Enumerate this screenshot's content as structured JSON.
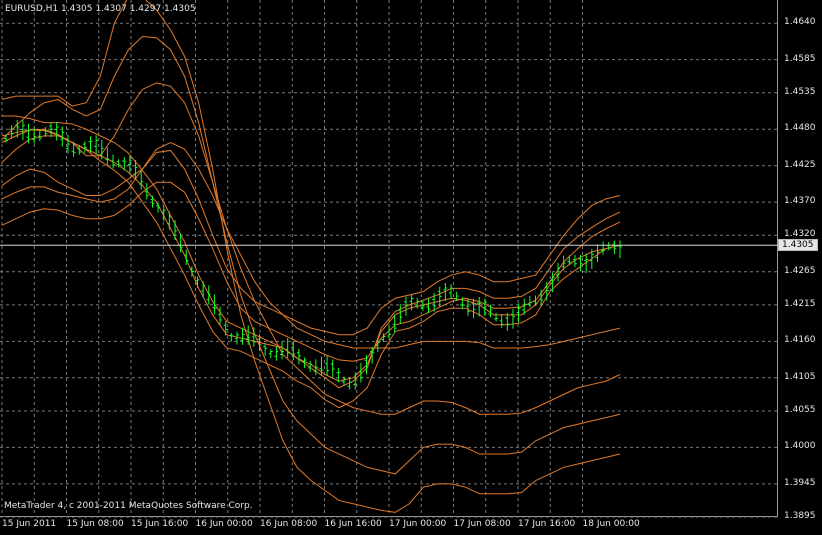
{
  "window": {
    "title": "EURUSD,H1",
    "ohlc": "1.4305 1.4307 1.4297 1.4305"
  },
  "footer": {
    "copyright": "MetaTrader 4, c 2001-2011 MetaQuotes Software Corp."
  },
  "colors": {
    "background": "#000000",
    "grid": "#7a7a7a",
    "axis_text": "#e6e6e6",
    "band": "#e07a2a",
    "price_line": "#d6d6d6",
    "candles": "#18ff2b"
  },
  "price_axis": {
    "labels": [
      "1.4640",
      "1.4585",
      "1.4535",
      "1.4480",
      "1.4425",
      "1.4370",
      "1.4320",
      "1.4265",
      "1.4215",
      "1.4160",
      "1.4105",
      "1.4055",
      "1.4000",
      "1.3945",
      "1.3895"
    ]
  },
  "time_axis": {
    "labels": [
      "15 Jun 2011",
      "15 Jun 08:00",
      "15 Jun 16:00",
      "16 Jun 00:00",
      "16 Jun 08:00",
      "16 Jun 16:00",
      "17 Jun 00:00",
      "17 Jun 08:00",
      "17 Jun 16:00",
      "18 Jun 00:00"
    ]
  },
  "current_price": "1.4305",
  "chart_data": {
    "type": "line",
    "title": "EURUSD,H1",
    "series": [
      {
        "values": [
          1.447,
          1.4475,
          1.4479,
          1.4478,
          1.4471,
          1.446,
          1.4449,
          1.4432,
          1.4418,
          1.44,
          1.437,
          1.434,
          1.43,
          1.426,
          1.4215,
          1.4175,
          1.415,
          1.4145,
          1.4135,
          1.4125,
          1.4115,
          1.41,
          1.409,
          1.4072,
          1.406,
          1.407,
          1.409,
          1.414,
          1.4175,
          1.418,
          1.419,
          1.4205,
          1.421,
          1.421,
          1.42,
          1.4185,
          1.4185,
          1.4188,
          1.42,
          1.4235,
          1.4255,
          1.427,
          1.4285,
          1.43,
          1.4305
        ]
      },
      {
        "values": [
          1.45,
          1.45,
          1.4496,
          1.449,
          1.449,
          1.4488,
          1.448,
          1.447,
          1.446,
          1.4444,
          1.4418,
          1.439,
          1.435,
          1.431,
          1.426,
          1.422,
          1.419,
          1.418,
          1.417,
          1.416,
          1.415,
          1.4135,
          1.412,
          1.4105,
          1.409,
          1.41,
          1.412,
          1.418,
          1.4205,
          1.4215,
          1.4222,
          1.423,
          1.424,
          1.424,
          1.4235,
          1.4225,
          1.4225,
          1.4228,
          1.424,
          1.427,
          1.43,
          1.4318,
          1.4332,
          1.4345,
          1.4355
        ]
      },
      {
        "values": [
          1.4395,
          1.441,
          1.442,
          1.4415,
          1.44,
          1.439,
          1.438,
          1.438,
          1.439,
          1.4405,
          1.442,
          1.445,
          1.446,
          1.445,
          1.442,
          1.438,
          1.433,
          1.429,
          1.425,
          1.422,
          1.42,
          1.418,
          1.417,
          1.416,
          1.4155,
          1.415,
          1.415,
          1.415,
          1.415,
          1.4155,
          1.416,
          1.416,
          1.416,
          1.416,
          1.4158,
          1.415,
          1.415,
          1.415,
          1.4152,
          1.4155,
          1.416,
          1.4165,
          1.417,
          1.4175,
          1.418
        ]
      },
      {
        "values": [
          1.443,
          1.445,
          1.4465,
          1.447,
          1.447,
          1.446,
          1.444,
          1.444,
          1.447,
          1.451,
          1.454,
          1.455,
          1.4545,
          1.452,
          1.447,
          1.44,
          1.433,
          1.427,
          1.422,
          1.418,
          1.414,
          1.412,
          1.41,
          1.408,
          1.407,
          1.406,
          1.4055,
          1.405,
          1.405,
          1.406,
          1.407,
          1.407,
          1.4068,
          1.406,
          1.405,
          1.405,
          1.405,
          1.4052,
          1.406,
          1.407,
          1.408,
          1.409,
          1.4095,
          1.41,
          1.411
        ]
      },
      {
        "values": [
          1.4465,
          1.4485,
          1.4505,
          1.452,
          1.4525,
          1.451,
          1.45,
          1.451,
          1.456,
          1.46,
          1.462,
          1.4618,
          1.46,
          1.456,
          1.449,
          1.44,
          1.431,
          1.423,
          1.417,
          1.412,
          1.407,
          1.404,
          1.402,
          1.4,
          1.399,
          1.398,
          1.397,
          1.3965,
          1.396,
          1.398,
          1.4,
          1.4005,
          1.4005,
          1.4,
          1.399,
          1.399,
          1.399,
          1.3993,
          1.401,
          1.402,
          1.403,
          1.4035,
          1.404,
          1.4045,
          1.405
        ]
      },
      {
        "values": [
          1.4525,
          1.453,
          1.453,
          1.453,
          1.453,
          1.4515,
          1.452,
          1.456,
          1.464,
          1.468,
          1.468,
          1.466,
          1.463,
          1.459,
          1.452,
          1.442,
          1.43,
          1.42,
          1.413,
          1.407,
          1.401,
          1.397,
          1.395,
          1.3935,
          1.392,
          1.3915,
          1.391,
          1.3905,
          1.3902,
          1.3915,
          1.394,
          1.3945,
          1.3945,
          1.394,
          1.393,
          1.393,
          1.393,
          1.3932,
          1.395,
          1.396,
          1.397,
          1.3975,
          1.398,
          1.3985,
          1.399
        ]
      },
      {
        "values": [
          1.4375,
          1.4385,
          1.4393,
          1.4393,
          1.4385,
          1.438,
          1.4375,
          1.437,
          1.4375,
          1.439,
          1.442,
          1.4445,
          1.4448,
          1.442,
          1.4375,
          1.432,
          1.427,
          1.424,
          1.422,
          1.421,
          1.42,
          1.419,
          1.418,
          1.4175,
          1.417,
          1.417,
          1.418,
          1.421,
          1.4225,
          1.423,
          1.4235,
          1.425,
          1.426,
          1.4265,
          1.426,
          1.425,
          1.425,
          1.4255,
          1.426,
          1.429,
          1.432,
          1.4345,
          1.4365,
          1.4375,
          1.438
        ]
      },
      {
        "values": [
          1.4335,
          1.4345,
          1.4355,
          1.436,
          1.4358,
          1.435,
          1.4345,
          1.4345,
          1.435,
          1.4365,
          1.4385,
          1.44,
          1.44,
          1.4385,
          1.4345,
          1.43,
          1.425,
          1.421,
          1.419,
          1.418,
          1.417,
          1.416,
          1.415,
          1.414,
          1.4132,
          1.413,
          1.4135,
          1.4165,
          1.4185,
          1.419,
          1.42,
          1.421,
          1.422,
          1.4225,
          1.422,
          1.421,
          1.421,
          1.4212,
          1.4222,
          1.425,
          1.428,
          1.43,
          1.4318,
          1.433,
          1.434
        ]
      },
      {
        "values": [
          1.446,
          1.447,
          1.4479,
          1.448,
          1.4472,
          1.446,
          1.445,
          1.444,
          1.443,
          1.4415,
          1.4395,
          1.437,
          1.433,
          1.429,
          1.424,
          1.42,
          1.417,
          1.4165,
          1.416,
          1.4155,
          1.415,
          1.4135,
          1.4125,
          1.411,
          1.41,
          1.4105,
          1.4125,
          1.4175,
          1.42,
          1.421,
          1.4215,
          1.422,
          1.4225,
          1.4222,
          1.4215,
          1.42,
          1.42,
          1.42,
          1.4215,
          1.4245,
          1.427,
          1.4285,
          1.4295,
          1.43,
          1.4305
        ]
      }
    ]
  }
}
